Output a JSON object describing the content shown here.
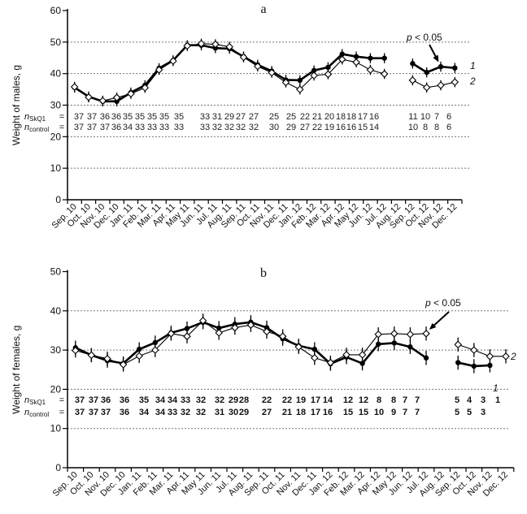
{
  "chart_data": [
    {
      "type": "line",
      "title": "a",
      "ylabel": "Weight of males, g",
      "ylim": [
        0,
        60
      ],
      "yticks": [
        0,
        10,
        20,
        30,
        40,
        50,
        60
      ],
      "grid": "horizontal dotted",
      "categories": [
        "Sep. 10",
        "Oct. 10",
        "Nov. 10",
        "Dec. 10",
        "Jan. 11",
        "Feb. 11",
        "Mar. 11",
        "Apr. 11",
        "May 11",
        "Jun. 11",
        "Jul. 11",
        "Aug. 11",
        "Sep. 11",
        "Oct. 11",
        "Nov. 11",
        "Dec. 11",
        "Jan. 12",
        "Feb. 12",
        "Mar. 12",
        "Apr. 12",
        "May 12",
        "Jun. 12",
        "Jul. 12",
        "Aug. 12",
        "Sep. 12",
        "Oct. 12",
        "Nov. 12",
        "Dec. 12"
      ],
      "series": [
        {
          "name": "1",
          "marker": "filled-circle",
          "color": "#000000",
          "error": 1.6,
          "values": [
            35.6,
            32.7,
            31.2,
            31.2,
            34,
            36.3,
            41.7,
            44.2,
            49,
            49,
            48.1,
            47.9,
            45.4,
            42.8,
            40.8,
            38,
            37.9,
            41,
            42,
            46.2,
            45.4,
            44.9,
            44.9,
            null,
            43.2,
            40.4,
            42.2,
            41.8
          ]
        },
        {
          "name": "2",
          "marker": "open-diamond",
          "color": "#000000",
          "error": 1.6,
          "values": [
            35.8,
            32.5,
            31.4,
            32.4,
            33.6,
            35.5,
            41.2,
            44,
            48.8,
            49.5,
            49.3,
            48.5,
            45.2,
            42.3,
            40.3,
            37.2,
            35,
            39.4,
            39.8,
            44.5,
            43.6,
            41.2,
            39.9,
            null,
            37.9,
            35.6,
            36.3,
            37.3
          ]
        }
      ],
      "n_rows": {
        "skq1_label": "n",
        "skq1_sub": "SkQ1",
        "control_label": "n",
        "control_sub": "control",
        "eq": "=",
        "skq1": [
          37,
          37,
          36,
          36,
          35,
          35,
          35,
          35,
          35,
          33,
          31,
          29,
          27,
          27,
          25,
          25,
          22,
          21,
          20,
          18,
          18,
          17,
          16,
          11,
          10,
          7,
          6
        ],
        "control": [
          37,
          37,
          37,
          36,
          34,
          33,
          33,
          33,
          33,
          33,
          32,
          32,
          32,
          32,
          30,
          29,
          27,
          22,
          19,
          16,
          16,
          15,
          14,
          10,
          8,
          8,
          6
        ]
      },
      "annotation": "p < 0.05",
      "annotation_p": "p",
      "annotation_rest": " < 0.05"
    },
    {
      "type": "line",
      "title": "b",
      "ylabel": "Weight of females, g",
      "ylim": [
        0,
        50
      ],
      "yticks": [
        0,
        10,
        20,
        30,
        40,
        50
      ],
      "grid": "horizontal dotted",
      "categories": [
        "Sep. 10",
        "Oct. 10",
        "Nov. 10",
        "Dec. 10",
        "Jan. 11",
        "Feb. 11",
        "Mar. 11",
        "Apr. 11",
        "May 11",
        "Jun. 11",
        "Jul. 11",
        "Aug. 11",
        "Sep. 11",
        "Oct. 11",
        "Nov. 11",
        "Dec. 11",
        "Jan. 12",
        "Feb. 12",
        "Mar. 12",
        "Apr. 12",
        "May 12",
        "Jun. 12",
        "Jul. 12",
        "Aug. 12",
        "Sep. 12",
        "Oct. 12",
        "Nov. 12",
        "Dec. 12"
      ],
      "series": [
        {
          "name": "1",
          "marker": "filled-circle",
          "color": "#000000",
          "error": 1.8,
          "values": [
            30.6,
            28.7,
            27.3,
            26.6,
            30.2,
            31.9,
            34.4,
            35.5,
            37.1,
            35.6,
            36.6,
            37.1,
            35.7,
            32.9,
            31.1,
            30.2,
            26.5,
            28.2,
            26.6,
            31.5,
            31.8,
            30.8,
            28,
            null,
            26.8,
            25.9,
            26.1,
            null
          ]
        },
        {
          "name": "2",
          "marker": "open-diamond",
          "color": "#000000",
          "error": 1.8,
          "values": [
            29.9,
            28.7,
            27.8,
            26.3,
            28.5,
            30,
            34.2,
            33.5,
            37.5,
            34.4,
            35.7,
            36.4,
            34.7,
            33.5,
            30.8,
            28,
            26.8,
            28.8,
            28.8,
            34,
            34.2,
            34,
            34.2,
            null,
            31.4,
            30,
            28.4,
            28.4
          ]
        }
      ],
      "n_rows": {
        "skq1_label": "n",
        "skq1_sub": "SkQ1",
        "control_label": "n",
        "control_sub": "control",
        "eq": "=",
        "skq1": [
          37,
          37,
          36,
          36,
          35,
          34,
          34,
          33,
          32,
          32,
          29,
          28,
          22,
          22,
          19,
          17,
          14,
          12,
          12,
          8,
          8,
          7,
          7,
          5,
          4,
          3,
          1
        ],
        "control": [
          37,
          37,
          37,
          36,
          34,
          34,
          33,
          32,
          32,
          31,
          30,
          29,
          27,
          21,
          18,
          17,
          16,
          15,
          15,
          10,
          9,
          7,
          7,
          5,
          5,
          3
        ]
      },
      "annotation": "p < 0.05",
      "annotation_p": "p",
      "annotation_rest": " < 0.05"
    }
  ]
}
